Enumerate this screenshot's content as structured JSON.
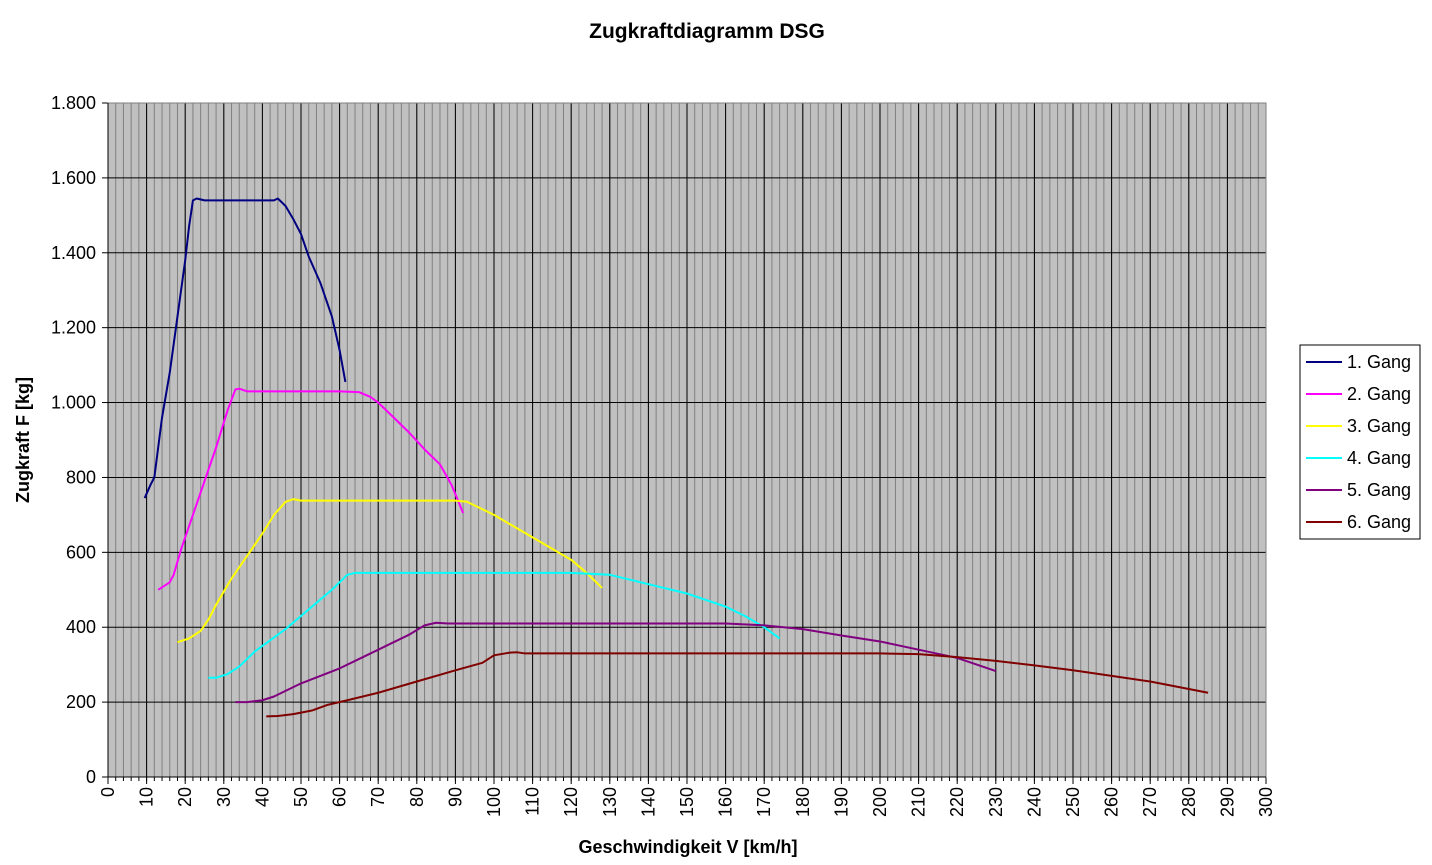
{
  "chart_data": {
    "type": "line",
    "title": "Zugkraftdiagramm DSG",
    "x_label": "Geschwindigkeit V [km/h]",
    "y_label": "Zugkraft F [kg]",
    "xlim": [
      0,
      300
    ],
    "xticks": [
      0,
      10,
      20,
      30,
      40,
      50,
      60,
      70,
      80,
      90,
      100,
      110,
      120,
      130,
      140,
      150,
      160,
      170,
      180,
      190,
      200,
      210,
      220,
      230,
      240,
      250,
      260,
      270,
      280,
      290,
      300
    ],
    "x_minor_grid_step": 2,
    "ylim": [
      0,
      1800
    ],
    "yticks": [
      0,
      200,
      400,
      600,
      800,
      {
        "value": 1000,
        "label": "1.000"
      },
      {
        "value": 1200,
        "label": "1.200"
      },
      {
        "value": 1400,
        "label": "1.400"
      },
      {
        "value": 1600,
        "label": "1.600"
      },
      {
        "value": 1800,
        "label": "1.800"
      }
    ],
    "grid": true,
    "legend": "right",
    "series": [
      {
        "name": "1. Gang",
        "color": "#000080",
        "x": [
          9.5,
          11,
          12,
          13,
          14,
          16,
          18,
          20,
          21,
          22,
          23,
          25,
          30,
          35,
          40,
          43,
          44,
          46,
          48,
          50,
          52,
          55,
          58,
          60,
          61.5
        ],
        "values": [
          745,
          780,
          800,
          880,
          960,
          1080,
          1230,
          1380,
          1470,
          1540,
          1545,
          1540,
          1540,
          1540,
          1540,
          1540,
          1545,
          1525,
          1490,
          1450,
          1390,
          1320,
          1230,
          1140,
          1055
        ]
      },
      {
        "name": "2. Gang",
        "color": "#ff00ff",
        "x": [
          13,
          16,
          17,
          19,
          22,
          25,
          28,
          31,
          33,
          34,
          36,
          40,
          50,
          60,
          65,
          68,
          70,
          74,
          78,
          82,
          86,
          89,
          92
        ],
        "values": [
          500,
          520,
          540,
          610,
          700,
          790,
          880,
          980,
          1035,
          1037,
          1030,
          1030,
          1030,
          1030,
          1028,
          1015,
          1000,
          960,
          920,
          875,
          835,
          780,
          705
        ]
      },
      {
        "name": "3. Gang",
        "color": "#ffff00",
        "x": [
          18,
          21,
          24,
          26,
          28,
          32,
          36,
          40,
          43,
          46,
          48,
          50,
          60,
          70,
          80,
          90,
          93,
          96,
          100,
          105,
          110,
          115,
          120,
          124,
          128
        ],
        "values": [
          360,
          370,
          390,
          420,
          460,
          530,
          590,
          650,
          700,
          735,
          742,
          738,
          738,
          738,
          738,
          738,
          735,
          720,
          700,
          670,
          640,
          610,
          580,
          545,
          505
        ]
      },
      {
        "name": "4. Gang",
        "color": "#00ffff",
        "x": [
          26,
          28,
          31,
          34,
          38,
          42,
          46,
          50,
          54,
          58,
          62,
          64,
          70,
          80,
          100,
          120,
          130,
          140,
          150,
          160,
          165,
          170,
          174
        ],
        "values": [
          265,
          265,
          275,
          295,
          335,
          365,
          395,
          430,
          465,
          500,
          540,
          545,
          545,
          545,
          545,
          545,
          540,
          515,
          490,
          455,
          430,
          400,
          370
        ]
      },
      {
        "name": "5. Gang",
        "color": "#800080",
        "x": [
          33,
          36,
          40,
          43,
          46,
          50,
          55,
          60,
          66,
          72,
          78,
          82,
          85,
          88,
          100,
          120,
          140,
          160,
          170,
          180,
          190,
          200,
          210,
          220,
          230
        ],
        "values": [
          200,
          200,
          205,
          215,
          230,
          250,
          270,
          290,
          320,
          350,
          380,
          405,
          412,
          410,
          410,
          410,
          410,
          410,
          405,
          395,
          378,
          362,
          340,
          318,
          283
        ]
      },
      {
        "name": "6. Gang",
        "color": "#800000",
        "x": [
          41,
          44,
          48,
          53,
          57,
          62,
          70,
          80,
          90,
          97,
          100,
          104,
          106,
          108,
          120,
          140,
          160,
          180,
          200,
          210,
          220,
          230,
          240,
          250,
          260,
          270,
          280,
          285
        ],
        "values": [
          162,
          163,
          168,
          178,
          193,
          205,
          225,
          255,
          285,
          305,
          325,
          332,
          333,
          330,
          330,
          330,
          330,
          330,
          330,
          328,
          320,
          310,
          298,
          285,
          270,
          255,
          235,
          225
        ]
      }
    ]
  }
}
